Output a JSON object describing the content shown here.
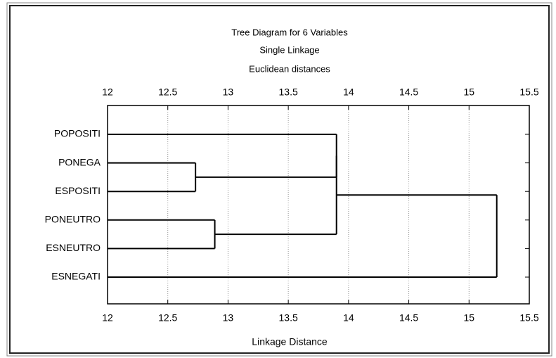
{
  "chart_data": {
    "type": "dendrogram",
    "title": "Tree Diagram for 6 Variables",
    "subtitle": "Single Linkage",
    "metric": "Euclidean distances",
    "xlabel": "Linkage Distance",
    "categories": [
      "POPOSITI",
      "PONEGA",
      "ESPOSITI",
      "PONEUTRO",
      "ESNEUTRO",
      "ESNEGATI"
    ],
    "merges": [
      {
        "children": [
          1,
          2
        ],
        "distance": 12.73
      },
      {
        "children": [
          3,
          4
        ],
        "distance": 12.89
      },
      {
        "children": [
          0,
          6
        ],
        "distance": 13.9
      },
      {
        "children": [
          8,
          7
        ],
        "distance": 13.9
      },
      {
        "children": [
          9,
          5
        ],
        "distance": 15.23
      }
    ],
    "xlim": [
      12,
      15.5
    ],
    "xticks": [
      12,
      12.5,
      13,
      13.5,
      14,
      14.5,
      15,
      15.5
    ],
    "grid": true,
    "color": "#000000"
  }
}
